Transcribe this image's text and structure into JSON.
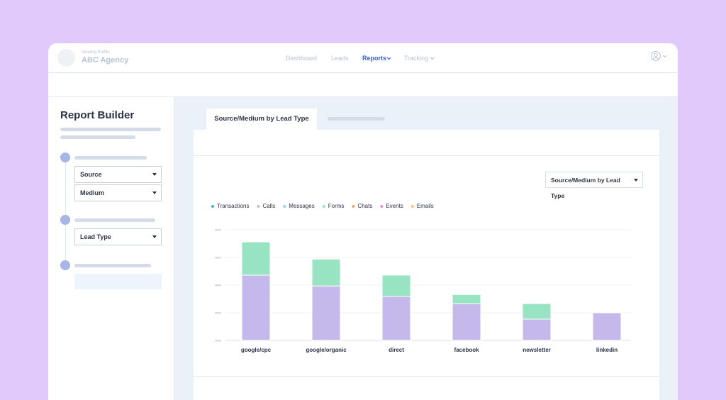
{
  "header": {
    "profile_label": "Viewing Profile",
    "profile_name": "ABC Agency",
    "nav": [
      "Dashboard",
      "Leads",
      "Reports",
      "Tracking"
    ]
  },
  "sidebar": {
    "title": "Report Builder",
    "fields": [
      "Source",
      "Medium",
      "Lead Type"
    ]
  },
  "tab": "Source/Medium by Lead Type",
  "report_select": "Source/Medium by Lead Type",
  "chart_data": {
    "type": "bar",
    "stacked": true,
    "grid": true,
    "categories": [
      "google/cpc",
      "google/organic",
      "direct",
      "facebook",
      "newsletter",
      "linkedin"
    ],
    "series": [
      {
        "name": "Transactions",
        "color": "#4fb0be",
        "values": [
          0,
          0,
          0,
          0,
          0,
          0
        ]
      },
      {
        "name": "Calls",
        "color": "#c4b9ea",
        "values": [
          2.36,
          1.97,
          1.59,
          1.33,
          0.77,
          1.0
        ]
      },
      {
        "name": "Messages",
        "color": "#8ed3e8",
        "values": [
          0,
          0,
          0,
          0,
          0,
          0
        ]
      },
      {
        "name": "Forms",
        "color": "#98e3c2",
        "values": [
          1.2,
          0.97,
          0.77,
          0.33,
          0.56,
          0
        ]
      },
      {
        "name": "Chats",
        "color": "#f0a56d",
        "values": [
          0,
          0,
          0,
          0,
          0,
          0
        ]
      },
      {
        "name": "Events",
        "color": "#e38be0",
        "values": [
          0,
          0,
          0,
          0,
          0,
          0
        ]
      },
      {
        "name": "Emails",
        "color": "#f5c77e",
        "values": [
          0,
          0,
          0,
          0,
          0,
          0
        ]
      }
    ],
    "ylim": [
      0,
      4
    ],
    "yticks": [
      0,
      1,
      2,
      3,
      4
    ]
  }
}
